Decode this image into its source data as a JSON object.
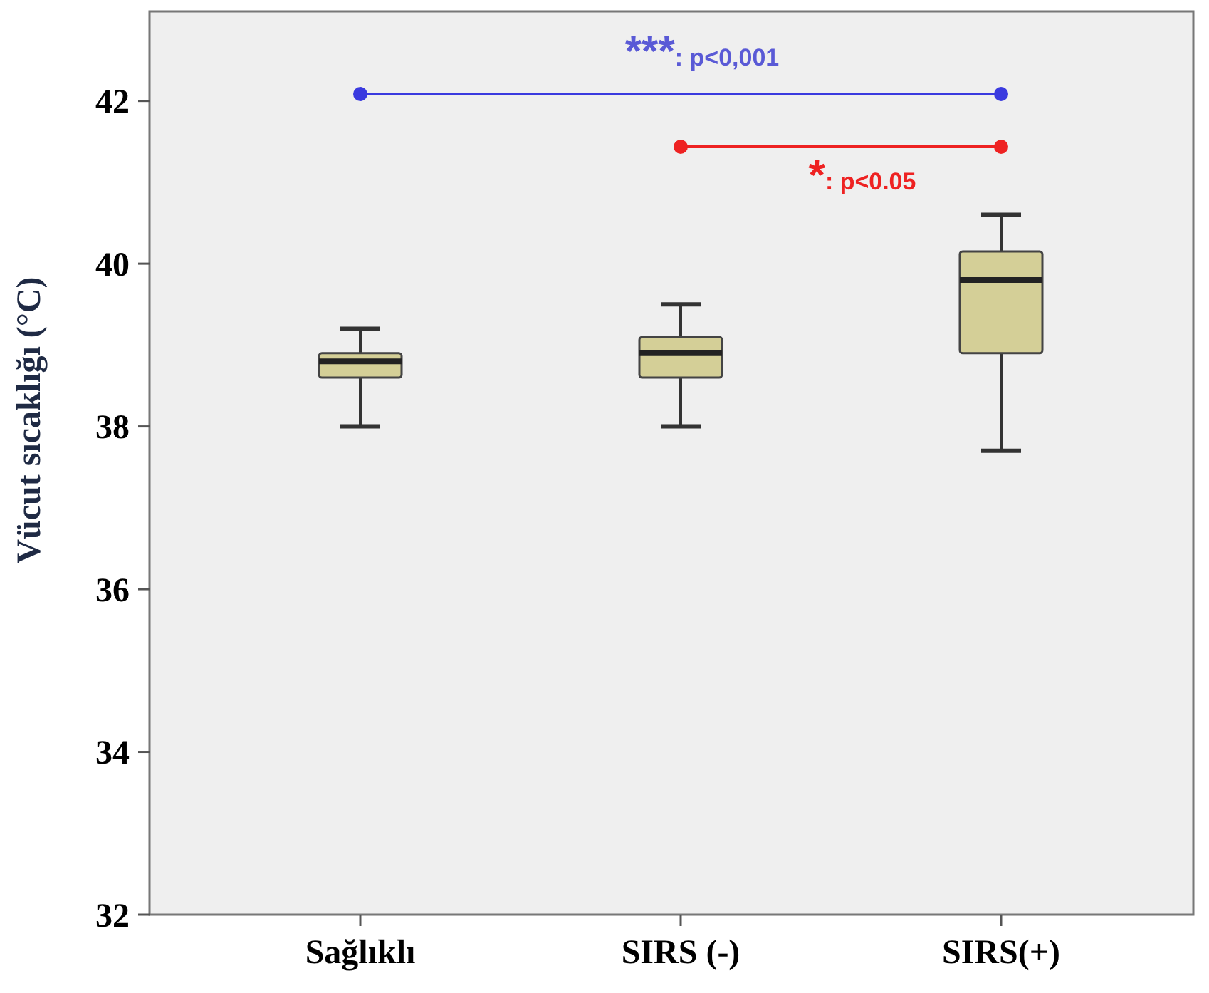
{
  "chart_data": {
    "type": "box",
    "categories": [
      "Sağlıklı",
      "SIRS (-)",
      "SIRS(+)"
    ],
    "ylabel": "Vücut sıcaklığı (°C)",
    "ylim": [
      32,
      43.1
    ],
    "yticks": [
      32,
      34,
      36,
      38,
      40,
      42
    ],
    "color": "#d4cf97",
    "boxes": [
      {
        "low": 38.0,
        "q1": 38.6,
        "median": 38.8,
        "q3": 38.9,
        "high": 39.2
      },
      {
        "low": 38.0,
        "q1": 38.6,
        "median": 38.9,
        "q3": 39.1,
        "high": 39.5
      },
      {
        "low": 37.7,
        "q1": 38.9,
        "median": 39.8,
        "q3": 40.15,
        "high": 40.6
      }
    ],
    "annotations": [
      "***: p<0,001",
      "*: p<0.05"
    ],
    "grid": false
  }
}
